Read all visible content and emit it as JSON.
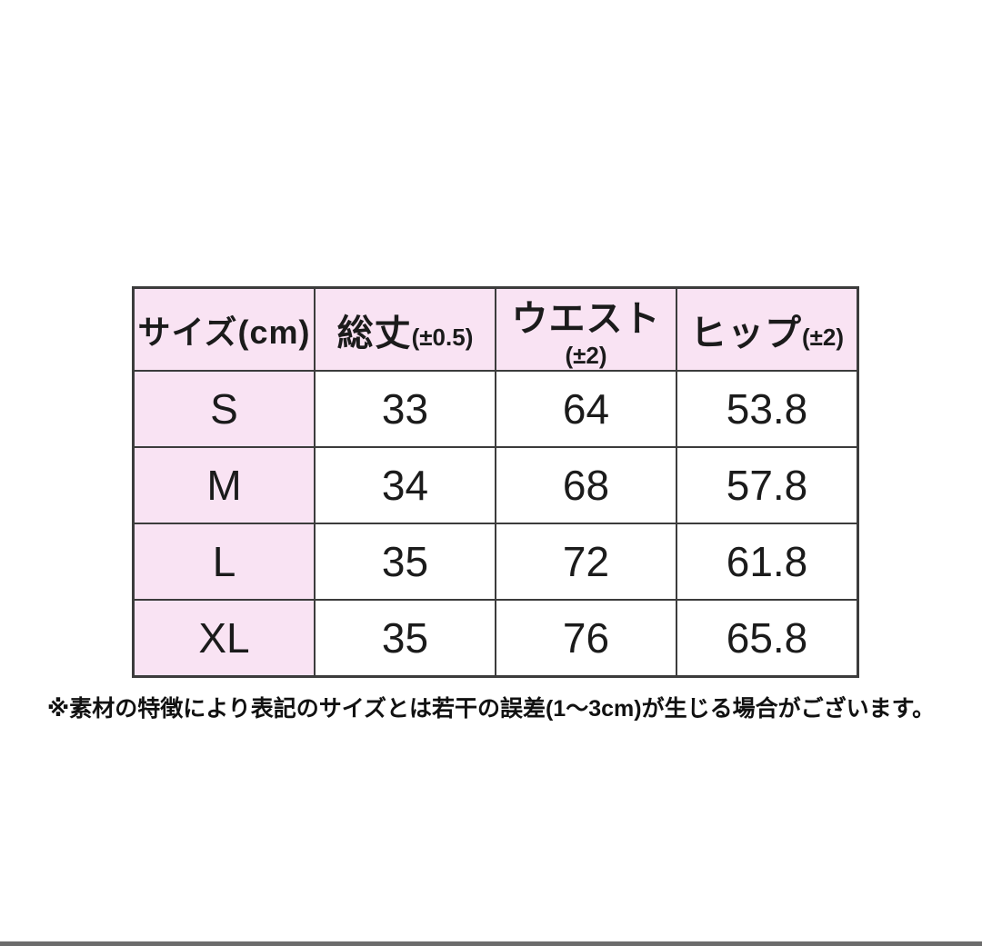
{
  "table": {
    "header": {
      "size_label": "サイズ(cm)",
      "columns": [
        {
          "label": "総丈",
          "tolerance": "(±0.5)"
        },
        {
          "label": "ウエスト",
          "tolerance": "(±2)"
        },
        {
          "label": "ヒップ",
          "tolerance": "(±2)"
        }
      ]
    },
    "rows": [
      {
        "size": "S",
        "length": "33",
        "waist": "64",
        "hip": "53.8"
      },
      {
        "size": "M",
        "length": "34",
        "waist": "68",
        "hip": "57.8"
      },
      {
        "size": "L",
        "length": "35",
        "waist": "72",
        "hip": "61.8"
      },
      {
        "size": "XL",
        "length": "35",
        "waist": "76",
        "hip": "65.8"
      }
    ]
  },
  "note": "※素材の特徴により表記のサイズとは若干の誤差(1〜3cm)が生じる場合がございます。",
  "colors": {
    "header_pink": "#f9e3f3",
    "border": "#3c3c3c",
    "bottom_bar": "#6c6c6c",
    "background": "#ffffff"
  }
}
